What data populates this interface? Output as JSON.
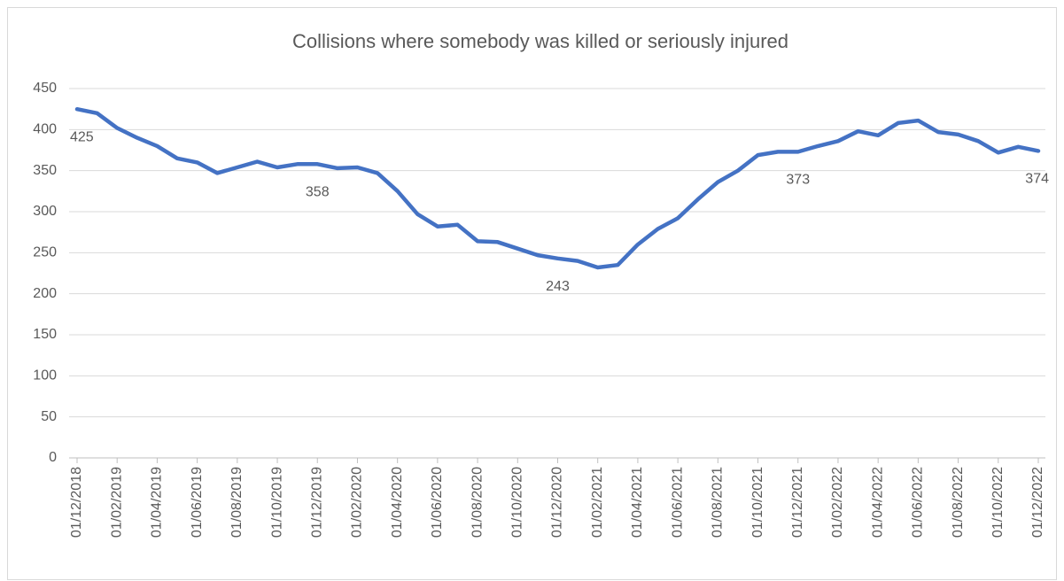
{
  "chart_data": {
    "type": "line",
    "title": "Collisions where somebody was killed or seriously injured",
    "categories": [
      "01/12/2018",
      null,
      "01/02/2019",
      null,
      "01/04/2019",
      null,
      "01/06/2019",
      null,
      "01/08/2019",
      null,
      "01/10/2019",
      null,
      "01/12/2019",
      null,
      "01/02/2020",
      null,
      "01/04/2020",
      null,
      "01/06/2020",
      null,
      "01/08/2020",
      null,
      "01/10/2020",
      null,
      "01/12/2020",
      null,
      "01/02/2021",
      null,
      "01/04/2021",
      null,
      "01/06/2021",
      null,
      "01/08/2021",
      null,
      "01/10/2021",
      null,
      "01/12/2021",
      null,
      "01/02/2022",
      null,
      "01/04/2022",
      null,
      "01/06/2022",
      null,
      "01/08/2022",
      null,
      "01/10/2022",
      null,
      "01/12/2022"
    ],
    "values": [
      425,
      420,
      402,
      390,
      380,
      365,
      360,
      347,
      354,
      361,
      354,
      358,
      358,
      353,
      354,
      347,
      325,
      297,
      282,
      284,
      264,
      263,
      255,
      247,
      243,
      240,
      232,
      235,
      260,
      279,
      292,
      315,
      336,
      350,
      369,
      373,
      373,
      380,
      386,
      398,
      393,
      408,
      411,
      397,
      394,
      386,
      372,
      379,
      374
    ],
    "value_labels": [
      "425",
      null,
      null,
      null,
      null,
      null,
      null,
      null,
      null,
      null,
      null,
      null,
      "358",
      null,
      null,
      null,
      null,
      null,
      null,
      null,
      null,
      null,
      null,
      null,
      "243",
      null,
      null,
      null,
      null,
      null,
      null,
      null,
      null,
      null,
      null,
      null,
      "373",
      null,
      null,
      null,
      null,
      null,
      null,
      null,
      null,
      null,
      null,
      null,
      "374"
    ],
    "color": "#4472c4",
    "ylim": [
      0,
      450
    ],
    "yticks": [
      0,
      50,
      100,
      150,
      200,
      250,
      300,
      350,
      400,
      450
    ],
    "grid": true
  }
}
